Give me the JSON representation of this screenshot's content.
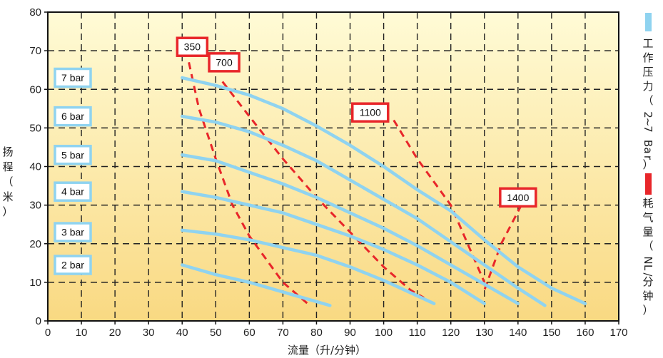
{
  "chart_data": {
    "type": "line",
    "xlabel": "流量（升/分钟）",
    "ylabel": "扬程（米）",
    "xlim": [
      0,
      170
    ],
    "ylim": [
      0,
      80
    ],
    "x_ticks": [
      "0",
      "10",
      "20",
      "30",
      "40",
      "50",
      "60",
      "70",
      "80",
      "90",
      "100",
      "110",
      "120",
      "130",
      "140",
      "150",
      "160",
      "170"
    ],
    "y_ticks": [
      "0",
      "10",
      "20",
      "30",
      "40",
      "50",
      "60",
      "70",
      "80"
    ],
    "grid": true,
    "colors": {
      "pressure": "#8fd3f0",
      "air": "#e8262a",
      "background_top": "#fffbd6",
      "background_bottom": "#f9d982"
    },
    "legend": [
      {
        "label": "工作压力（2~7 Bar）",
        "color": "#8fd3f0"
      },
      {
        "label": "耗气量（NL/分钟）",
        "color": "#e8262a"
      }
    ],
    "pressure_series": [
      {
        "name": "7 bar",
        "x": [
          40,
          50,
          60,
          70,
          80,
          90,
          100,
          110,
          120,
          130,
          140,
          150,
          160
        ],
        "y": [
          63,
          61,
          58.5,
          55,
          50.5,
          45.5,
          40,
          34,
          28.5,
          21,
          14,
          8.5,
          4.5
        ]
      },
      {
        "name": "6 bar",
        "x": [
          40,
          50,
          60,
          70,
          80,
          90,
          100,
          110,
          120,
          130,
          140,
          148
        ],
        "y": [
          53,
          51.5,
          49,
          45.5,
          41.5,
          36.5,
          31.5,
          26.5,
          20.5,
          14.5,
          8.5,
          4
        ]
      },
      {
        "name": "5 bar",
        "x": [
          40,
          50,
          60,
          70,
          80,
          90,
          100,
          110,
          120,
          130,
          140
        ],
        "y": [
          43,
          41.5,
          38.5,
          35.5,
          32,
          28,
          24,
          19.5,
          14.5,
          9.5,
          4.5
        ]
      },
      {
        "name": "4 bar",
        "x": [
          40,
          50,
          60,
          70,
          80,
          90,
          100,
          110,
          120,
          130
        ],
        "y": [
          33.5,
          32,
          30,
          28,
          25,
          22,
          18.5,
          14.5,
          10,
          4.5
        ]
      },
      {
        "name": "3 bar",
        "x": [
          40,
          50,
          60,
          70,
          80,
          90,
          100,
          110,
          115
        ],
        "y": [
          23.5,
          22.5,
          21,
          19,
          17,
          14,
          10.5,
          6.5,
          4.5
        ]
      },
      {
        "name": "2 bar",
        "x": [
          40,
          50,
          60,
          70,
          80,
          84
        ],
        "y": [
          14.5,
          12,
          10,
          7.5,
          5,
          4
        ]
      }
    ],
    "air_series": [
      {
        "name": "350",
        "x": [
          42,
          45,
          50,
          55,
          60,
          70,
          78
        ],
        "y": [
          67,
          55,
          42,
          30,
          22,
          10,
          4
        ]
      },
      {
        "name": "700",
        "x": [
          52,
          60,
          70,
          80,
          90,
          100,
          108,
          112
        ],
        "y": [
          62,
          53,
          42,
          32,
          23,
          14,
          8,
          6
        ]
      },
      {
        "name": "1100",
        "x": [
          103,
          110,
          120,
          125,
          130
        ],
        "y": [
          52,
          42,
          30,
          20,
          10
        ]
      },
      {
        "name": "1400",
        "x": [
          141,
          135,
          130
        ],
        "y": [
          30,
          20,
          8
        ]
      }
    ],
    "pressure_labels": [
      {
        "text": "7 bar",
        "y": 63
      },
      {
        "text": "6 bar",
        "y": 53
      },
      {
        "text": "5 bar",
        "y": 43
      },
      {
        "text": "4 bar",
        "y": 33.5
      },
      {
        "text": "3 bar",
        "y": 23
      },
      {
        "text": "2 bar",
        "y": 14.5
      }
    ],
    "air_labels": [
      {
        "text": "350",
        "x": 43,
        "y": 71
      },
      {
        "text": "700",
        "x": 52.5,
        "y": 67
      },
      {
        "text": "1100",
        "x": 96,
        "y": 54
      },
      {
        "text": "1400",
        "x": 140,
        "y": 32
      }
    ]
  }
}
